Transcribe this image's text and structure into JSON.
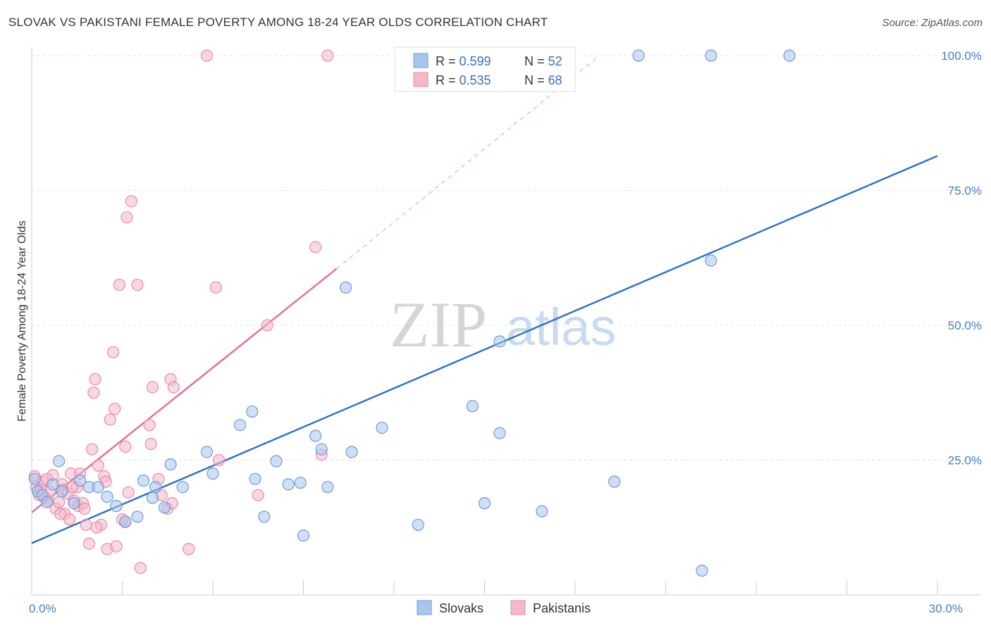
{
  "title": "SLOVAK VS PAKISTANI FEMALE POVERTY AMONG 18-24 YEAR OLDS CORRELATION CHART",
  "source": "Source: ZipAtlas.com",
  "watermark": {
    "zip": "ZIP",
    "atlas": "atlas"
  },
  "colors": {
    "slovak_fill": "#a8c6ef",
    "slovak_stroke": "#6f9ad8",
    "slovak_line": "#2a6fcb",
    "pakistani_fill": "#f5b8cb",
    "pakistani_stroke": "#e88aa8",
    "pakistani_line": "#e56b93",
    "tick_text": "#4a7cc7",
    "grid": "#e3e3e3"
  },
  "legend": {
    "rows": [
      {
        "r_label": "R = ",
        "r_value": "0.599",
        "n_label": "N = ",
        "n_value": "52"
      },
      {
        "r_label": "R = ",
        "r_value": "0.535",
        "n_label": "N = ",
        "n_value": "68"
      }
    ]
  },
  "chart_data": {
    "type": "scatter",
    "title": "SLOVAK VS PAKISTANI FEMALE POVERTY AMONG 18-24 YEAR OLDS CORRELATION CHART",
    "xlabel": "",
    "ylabel": "Female Poverty Among 18-24 Year Olds",
    "xlim": [
      0,
      30
    ],
    "ylim": [
      0,
      100
    ],
    "x_tick_labels": [
      {
        "value": 0,
        "label": "0.0%"
      },
      {
        "value": 30,
        "label": "30.0%"
      }
    ],
    "y_tick_labels": [
      {
        "value": 25,
        "label": "25.0%"
      },
      {
        "value": 50,
        "label": "50.0%"
      },
      {
        "value": 75,
        "label": "75.0%"
      },
      {
        "value": 100,
        "label": "100.0%"
      }
    ],
    "grid": true,
    "legend_position": "top-center",
    "series": [
      {
        "name": "Slovaks",
        "r": 0.599,
        "n": 52,
        "trend": {
          "x": [
            0,
            30
          ],
          "y": [
            9.6,
            81.4
          ],
          "style": "solid"
        },
        "points": [
          [
            0.1,
            21.5
          ],
          [
            0.2,
            19.2
          ],
          [
            0.35,
            18.5
          ],
          [
            0.5,
            17.2
          ],
          [
            0.7,
            20.5
          ],
          [
            0.9,
            24.8
          ],
          [
            1.0,
            19.2
          ],
          [
            1.4,
            17.0
          ],
          [
            1.9,
            20.0
          ],
          [
            1.6,
            21.2
          ],
          [
            2.2,
            20.0
          ],
          [
            2.8,
            16.5
          ],
          [
            2.5,
            18.2
          ],
          [
            3.1,
            13.6
          ],
          [
            3.5,
            14.5
          ],
          [
            3.7,
            21.2
          ],
          [
            4.1,
            20.0
          ],
          [
            4.0,
            18.0
          ],
          [
            4.4,
            16.2
          ],
          [
            4.6,
            24.2
          ],
          [
            5.0,
            20.0
          ],
          [
            5.8,
            26.5
          ],
          [
            6.0,
            22.5
          ],
          [
            6.9,
            31.5
          ],
          [
            7.3,
            34.0
          ],
          [
            7.4,
            21.5
          ],
          [
            7.7,
            14.5
          ],
          [
            8.1,
            24.8
          ],
          [
            8.5,
            20.5
          ],
          [
            8.9,
            20.8
          ],
          [
            9.0,
            11.0
          ],
          [
            9.4,
            29.5
          ],
          [
            9.6,
            27.0
          ],
          [
            9.8,
            20.0
          ],
          [
            10.4,
            57.0
          ],
          [
            10.6,
            26.5
          ],
          [
            11.6,
            31.0
          ],
          [
            12.3,
            100.0
          ],
          [
            12.8,
            13.0
          ],
          [
            14.6,
            35.0
          ],
          [
            15.0,
            17.0
          ],
          [
            15.5,
            30.0
          ],
          [
            15.5,
            47.0
          ],
          [
            16.1,
            100.0
          ],
          [
            16.1,
            95.0
          ],
          [
            16.9,
            15.5
          ],
          [
            19.3,
            21.0
          ],
          [
            20.1,
            100.0
          ],
          [
            22.2,
            4.5
          ],
          [
            22.5,
            62.0
          ],
          [
            22.5,
            100.0
          ],
          [
            25.1,
            100.0
          ]
        ]
      },
      {
        "name": "Pakistanis",
        "r": 0.535,
        "n": 68,
        "trend": {
          "x": [
            0,
            10.1
          ],
          "y": [
            15.3,
            60.5
          ],
          "extended_to": [
            18.8,
            100.0
          ],
          "style": "solid-then-dashed"
        },
        "points": [
          [
            0.1,
            22.0
          ],
          [
            0.15,
            20.0
          ],
          [
            0.25,
            18.5
          ],
          [
            0.35,
            21.0
          ],
          [
            0.45,
            18.0
          ],
          [
            0.55,
            17.5
          ],
          [
            0.6,
            19.2
          ],
          [
            0.7,
            22.2
          ],
          [
            0.8,
            16.0
          ],
          [
            0.9,
            17.2
          ],
          [
            1.0,
            20.5
          ],
          [
            1.05,
            19.5
          ],
          [
            1.1,
            15.0
          ],
          [
            1.2,
            18.8
          ],
          [
            1.3,
            22.5
          ],
          [
            1.4,
            17.5
          ],
          [
            1.5,
            20.0
          ],
          [
            1.55,
            16.5
          ],
          [
            1.6,
            22.5
          ],
          [
            1.7,
            17.0
          ],
          [
            1.8,
            13.0
          ],
          [
            1.9,
            9.5
          ],
          [
            2.0,
            27.0
          ],
          [
            2.05,
            37.5
          ],
          [
            2.1,
            40.0
          ],
          [
            2.2,
            24.0
          ],
          [
            2.3,
            13.0
          ],
          [
            2.4,
            22.0
          ],
          [
            2.5,
            8.5
          ],
          [
            2.6,
            32.5
          ],
          [
            2.7,
            45.0
          ],
          [
            2.75,
            34.5
          ],
          [
            2.8,
            9.0
          ],
          [
            2.9,
            57.5
          ],
          [
            3.1,
            27.5
          ],
          [
            3.1,
            13.5
          ],
          [
            3.15,
            70.0
          ],
          [
            3.3,
            73.0
          ],
          [
            3.5,
            57.5
          ],
          [
            3.6,
            5.0
          ],
          [
            3.9,
            31.5
          ],
          [
            3.95,
            28.0
          ],
          [
            4.0,
            38.5
          ],
          [
            4.3,
            18.5
          ],
          [
            4.5,
            16.0
          ],
          [
            4.6,
            40.0
          ],
          [
            4.65,
            17.0
          ],
          [
            4.7,
            38.5
          ],
          [
            5.2,
            8.5
          ],
          [
            6.1,
            57.0
          ],
          [
            6.2,
            25.0
          ],
          [
            7.5,
            18.5
          ],
          [
            7.8,
            50.0
          ],
          [
            5.8,
            100.0
          ],
          [
            9.4,
            64.5
          ],
          [
            9.6,
            26.0
          ],
          [
            9.8,
            100.0
          ],
          [
            1.25,
            14.0
          ],
          [
            0.95,
            15.0
          ],
          [
            1.75,
            16.0
          ],
          [
            2.15,
            12.5
          ],
          [
            0.3,
            19.5
          ],
          [
            0.5,
            21.5
          ],
          [
            1.35,
            20.0
          ],
          [
            2.45,
            21.0
          ],
          [
            3.0,
            14.0
          ],
          [
            3.2,
            19.0
          ],
          [
            4.2,
            21.5
          ]
        ]
      }
    ]
  },
  "bottom_legend": [
    {
      "key": "slovaks",
      "label": "Slovaks"
    },
    {
      "key": "pakistanis",
      "label": "Pakistanis"
    }
  ]
}
